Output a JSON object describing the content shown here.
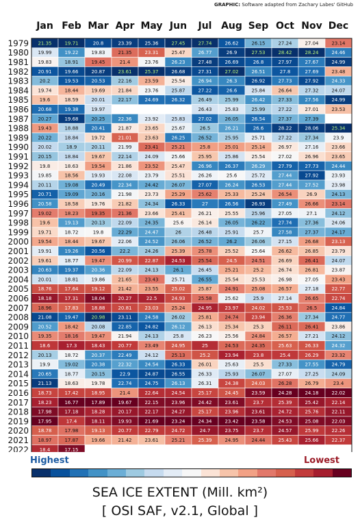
{
  "credit": {
    "label": "GRAPHIC:",
    "text": "Software adapted from Zachary Labes' GitHub"
  },
  "legend": {
    "high": "Highest",
    "low": "Lowest"
  },
  "title": "SEA ICE EXTENT (Mill. km²)",
  "subtitle": "[ OSI SAF, v2.1, Global ]",
  "chart_data": {
    "type": "heatmap",
    "months": [
      "Jan",
      "Feb",
      "Mar",
      "Apr",
      "May",
      "Jun",
      "Jul",
      "Aug",
      "Sep",
      "Oct",
      "Nov",
      "Dec"
    ],
    "years": [
      "1979",
      "1980",
      "1981",
      "1982",
      "1983",
      "1984",
      "1985",
      "1986",
      "1987",
      "1988",
      "1989",
      "1990",
      "1991",
      "1992",
      "1993",
      "1994",
      "1995",
      "1996",
      "1997",
      "1998",
      "1999",
      "2000",
      "2001",
      "2002",
      "2003",
      "2004",
      "2005",
      "2006",
      "2007",
      "2008",
      "2009",
      "2010",
      "2011",
      "2012",
      "2013",
      "2014",
      "2015",
      "2016",
      "2017",
      "2018",
      "2019",
      "2020",
      "2021",
      "2022"
    ],
    "values": [
      [
        21.35,
        19.71,
        20.8,
        23.39,
        25.36,
        27.45,
        27.74,
        26.62,
        26.15,
        27.24,
        27.04,
        23.14
      ],
      [
        19.99,
        19.22,
        19.83,
        21.35,
        23.31,
        25.47,
        26.77,
        26.9,
        27.53,
        28.42,
        28.24,
        24.46
      ],
      [
        19.83,
        18.91,
        19.45,
        21.4,
        23.76,
        26.23,
        27.48,
        26.69,
        26.8,
        27.97,
        27.67,
        24.99
      ],
      [
        20.91,
        19.66,
        20.87,
        23.61,
        25.37,
        26.68,
        27.31,
        27.02,
        26.51,
        27.8,
        27.69,
        23.48
      ],
      [
        20.2,
        19.53,
        20.53,
        22.16,
        23.59,
        25.54,
        26.94,
        26.3,
        26.92,
        27.73,
        27.92,
        24.33
      ],
      [
        19.74,
        18.44,
        19.69,
        21.84,
        23.76,
        25.87,
        27.22,
        26.6,
        25.84,
        26.64,
        27.32,
        24.07
      ],
      [
        19.6,
        18.59,
        20.01,
        22.17,
        24.69,
        26.32,
        26.49,
        25.99,
        26.42,
        27.33,
        27.56,
        24.99
      ],
      [
        20.68,
        19.38,
        19.97,
        null,
        null,
        null,
        26.43,
        25.83,
        25.99,
        27.22,
        27.01,
        23.53
      ],
      [
        20.27,
        19.68,
        20.25,
        22.36,
        23.92,
        25.83,
        27.02,
        26.05,
        26.54,
        27.37,
        27.39,
        null
      ],
      [
        19.43,
        18.88,
        20.41,
        21.87,
        23.65,
        25.67,
        26.5,
        26.21,
        26.6,
        28.22,
        28.06,
        25.34
      ],
      [
        20.22,
        18.84,
        19.72,
        21.01,
        23.63,
        26.25,
        26.52,
        25.95,
        25.71,
        27.22,
        27.34,
        23.9
      ],
      [
        20.02,
        18.9,
        20.11,
        21.99,
        23.41,
        25.21,
        25.8,
        25.01,
        25.14,
        26.97,
        27.16,
        23.66
      ],
      [
        20.15,
        18.84,
        19.67,
        22.14,
        24.09,
        25.66,
        25.95,
        25.86,
        25.54,
        27.02,
        26.96,
        23.65
      ],
      [
        19.8,
        18.63,
        19.54,
        21.86,
        23.52,
        25.47,
        26.96,
        26.37,
        26.29,
        27.79,
        27.73,
        24.44
      ],
      [
        19.85,
        18.56,
        19.93,
        22.08,
        23.79,
        25.51,
        26.26,
        25.6,
        25.72,
        27.44,
        27.92,
        23.93
      ],
      [
        20.11,
        19.08,
        20.49,
        22.34,
        24.42,
        26.07,
        27.07,
        26.24,
        26.53,
        27.44,
        27.52,
        23.98
      ],
      [
        20.71,
        19.09,
        20.16,
        21.98,
        23.73,
        25.29,
        25.62,
        25.33,
        25.24,
        26.54,
        26.9,
        24.13
      ],
      [
        20.58,
        18.58,
        19.76,
        21.82,
        24.34,
        26.33,
        27.0,
        26.56,
        26.93,
        27.49,
        26.66,
        23.14
      ],
      [
        19.02,
        18.23,
        19.35,
        21.36,
        23.66,
        25.41,
        26.21,
        25.55,
        25.96,
        27.05,
        27.1,
        24.12
      ],
      [
        19.6,
        19.13,
        20.13,
        22.09,
        24.35,
        25.6,
        26.14,
        26.05,
        26.22,
        27.74,
        27.36,
        24.06
      ],
      [
        19.71,
        18.72,
        19.8,
        22.29,
        24.47,
        26.0,
        26.48,
        25.91,
        25.7,
        27.58,
        27.37,
        24.17
      ],
      [
        19.54,
        18.44,
        19.67,
        22.06,
        24.52,
        26.06,
        26.52,
        26.2,
        26.06,
        27.15,
        26.68,
        23.13
      ],
      [
        19.91,
        19.26,
        20.56,
        22.2,
        24.26,
        25.39,
        25.78,
        25.52,
        25.64,
        26.62,
        26.85,
        23.79
      ],
      [
        19.61,
        18.77,
        19.47,
        20.99,
        22.87,
        24.53,
        25.54,
        24.5,
        24.51,
        26.69,
        26.41,
        24.07
      ],
      [
        20.63,
        19.37,
        20.36,
        22.09,
        24.13,
        26.1,
        26.45,
        25.21,
        25.2,
        26.74,
        26.81,
        23.87
      ],
      [
        20.01,
        18.81,
        19.86,
        21.65,
        23.43,
        25.71,
        26.55,
        25.54,
        25.53,
        26.98,
        27.05,
        23.43
      ],
      [
        18.76,
        17.64,
        19.12,
        21.42,
        23.55,
        25.02,
        25.87,
        24.91,
        25.08,
        26.57,
        27.18,
        22.77
      ],
      [
        18.18,
        17.31,
        18.04,
        20.27,
        22.5,
        24.93,
        25.58,
        25.62,
        25.9,
        27.14,
        26.65,
        22.74
      ],
      [
        18.96,
        17.83,
        18.88,
        20.81,
        23.03,
        25.24,
        24.95,
        23.97,
        24.02,
        25.53,
        26.5,
        24.84
      ],
      [
        21.08,
        19.47,
        20.98,
        23.11,
        24.58,
        26.02,
        25.81,
        24.74,
        23.94,
        26.36,
        27.34,
        24.77
      ],
      [
        20.52,
        18.42,
        20.08,
        22.85,
        24.82,
        26.12,
        26.13,
        25.34,
        25.3,
        26.11,
        26.41,
        23.86
      ],
      [
        19.35,
        18.16,
        19.47,
        21.94,
        24.13,
        25.8,
        26.23,
        25.56,
        24.84,
        26.57,
        27.21,
        24.12
      ],
      [
        18.6,
        17.3,
        18.43,
        20.77,
        23.49,
        24.95,
        25.0,
        24.53,
        24.35,
        25.63,
        26.33,
        24.32
      ],
      [
        20.13,
        18.72,
        20.37,
        22.49,
        24.12,
        25.13,
        25.2,
        23.94,
        23.8,
        25.4,
        26.29,
        23.32
      ],
      [
        19.9,
        19.02,
        20.38,
        22.32,
        24.54,
        26.33,
        26.01,
        25.63,
        25.5,
        27.33,
        27.55,
        24.79
      ],
      [
        20.65,
        18.77,
        20.15,
        22.9,
        24.87,
        26.55,
        26.33,
        25.93,
        26.07,
        27.07,
        27.25,
        24.09
      ],
      [
        21.13,
        18.63,
        19.78,
        22.74,
        24.75,
        26.13,
        26.31,
        24.38,
        24.03,
        26.28,
        26.79,
        23.4
      ],
      [
        18.73,
        17.42,
        18.95,
        21.4,
        22.64,
        24.54,
        25.17,
        24.45,
        23.59,
        24.28,
        24.18,
        22.02
      ],
      [
        18.23,
        16.77,
        17.89,
        19.67,
        22.15,
        23.96,
        24.42,
        23.61,
        23.7,
        25.39,
        25.42,
        22.14
      ],
      [
        17.98,
        17.18,
        18.28,
        20.17,
        22.17,
        24.27,
        25.17,
        23.96,
        23.61,
        24.72,
        25.76,
        22.11
      ],
      [
        17.95,
        17.4,
        18.11,
        19.93,
        21.69,
        23.24,
        24.34,
        23.42,
        23.58,
        24.53,
        25.08,
        22.03
      ],
      [
        18.78,
        17.98,
        19.13,
        20.77,
        22.79,
        24.72,
        24.7,
        23.75,
        23.7,
        24.57,
        25.99,
        22.26
      ],
      [
        18.97,
        17.87,
        19.66,
        21.42,
        23.61,
        25.21,
        25.39,
        24.95,
        24.44,
        25.43,
        25.66,
        22.37
      ],
      [
        18.4,
        17.15,
        null,
        null,
        null,
        null,
        null,
        null,
        null,
        null,
        null,
        null
      ]
    ],
    "ranking": "each month column colored from highest (dark blue) to lowest (dark red)",
    "colormap": [
      "#08306b",
      "#08519c",
      "#2171b5",
      "#4292c6",
      "#6baed6",
      "#9ecae1",
      "#c6dbef",
      "#e3ecf6",
      "#f7f7f7",
      "#fbe3d6",
      "#f7c4aa",
      "#f2a185",
      "#e2786a",
      "#d6604d",
      "#c23b3b",
      "#a51d2e",
      "#67001f"
    ],
    "annotations": [
      {
        "year": "1979",
        "month": "Jan",
        "value": 21.35
      },
      {
        "year": "1979",
        "month": "Feb",
        "value": 19.71
      },
      {
        "year": "1979",
        "month": "Jun",
        "value": 27.45
      },
      {
        "year": "1979",
        "month": "Jul",
        "value": 27.74
      },
      {
        "year": "1980",
        "month": "Sep",
        "value": 27.53
      },
      {
        "year": "1980",
        "month": "Oct",
        "value": 28.42
      },
      {
        "year": "1980",
        "month": "Nov",
        "value": 28.24
      },
      {
        "year": "1982",
        "month": "Apr",
        "value": 23.61
      },
      {
        "year": "1982",
        "month": "May",
        "value": 25.37
      },
      {
        "year": "1982",
        "month": "Aug",
        "value": 27.02
      },
      {
        "year": "1988",
        "month": "Dec",
        "value": 25.34
      },
      {
        "year": "2008",
        "month": "Mar",
        "value": 20.98
      }
    ]
  }
}
